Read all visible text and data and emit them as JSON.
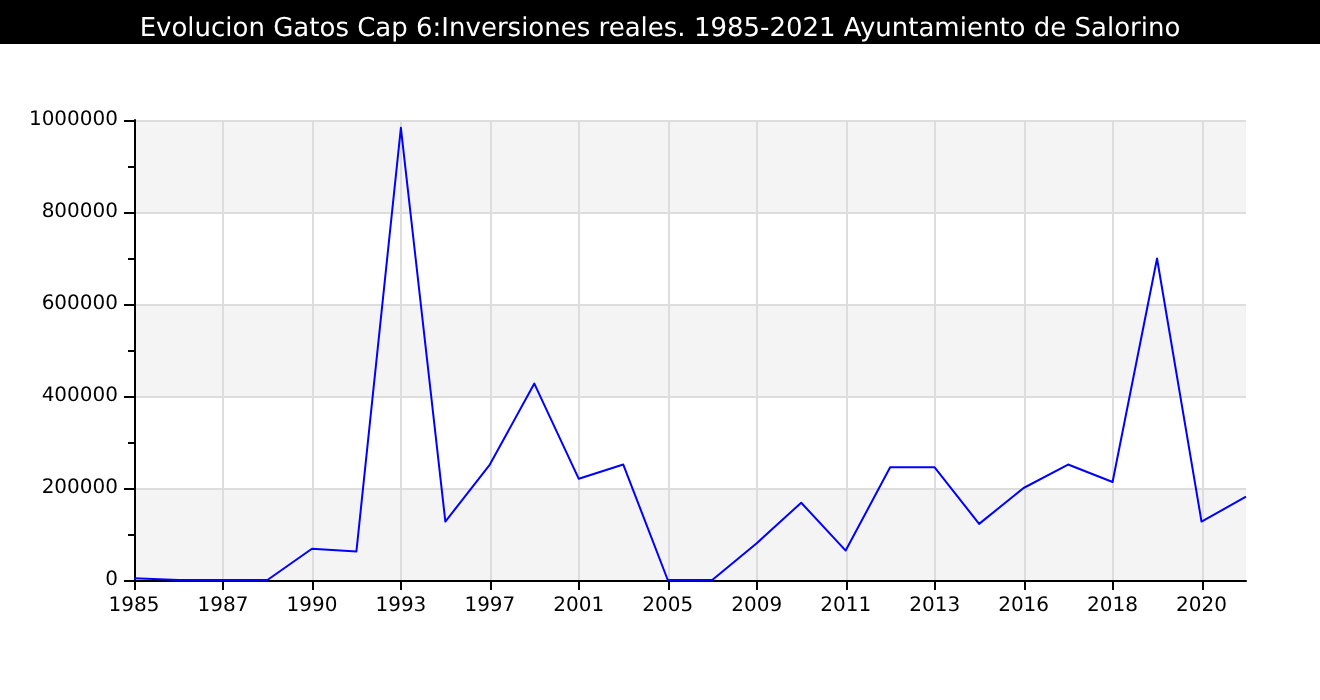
{
  "chart_data": {
    "type": "line",
    "title": "Evolucion Gatos Cap 6:Inversiones reales. 1985-2021 Ayuntamiento de Salorino",
    "categories": [
      "1985",
      null,
      "1987",
      null,
      "1990",
      null,
      "1993",
      null,
      "1997",
      null,
      "2001",
      null,
      "2005",
      null,
      "2009",
      null,
      "2011",
      null,
      "2013",
      null,
      "2016",
      null,
      "2018",
      null,
      "2020",
      null
    ],
    "series": [
      {
        "color": "#0000ff",
        "values": [
          4000,
          0,
          0,
          0,
          68000,
          62000,
          983000,
          127000,
          251000,
          427000,
          220000,
          251000,
          0,
          0,
          80000,
          168000,
          64000,
          245000,
          245000,
          122000,
          200000,
          251000,
          213000,
          699000,
          127000,
          181000
        ]
      }
    ],
    "ylim": [
      0,
      1000000
    ],
    "yticks": [
      0,
      200000,
      400000,
      600000,
      800000,
      1000000
    ],
    "grid": true,
    "marker": "none",
    "line_style": "solid"
  }
}
